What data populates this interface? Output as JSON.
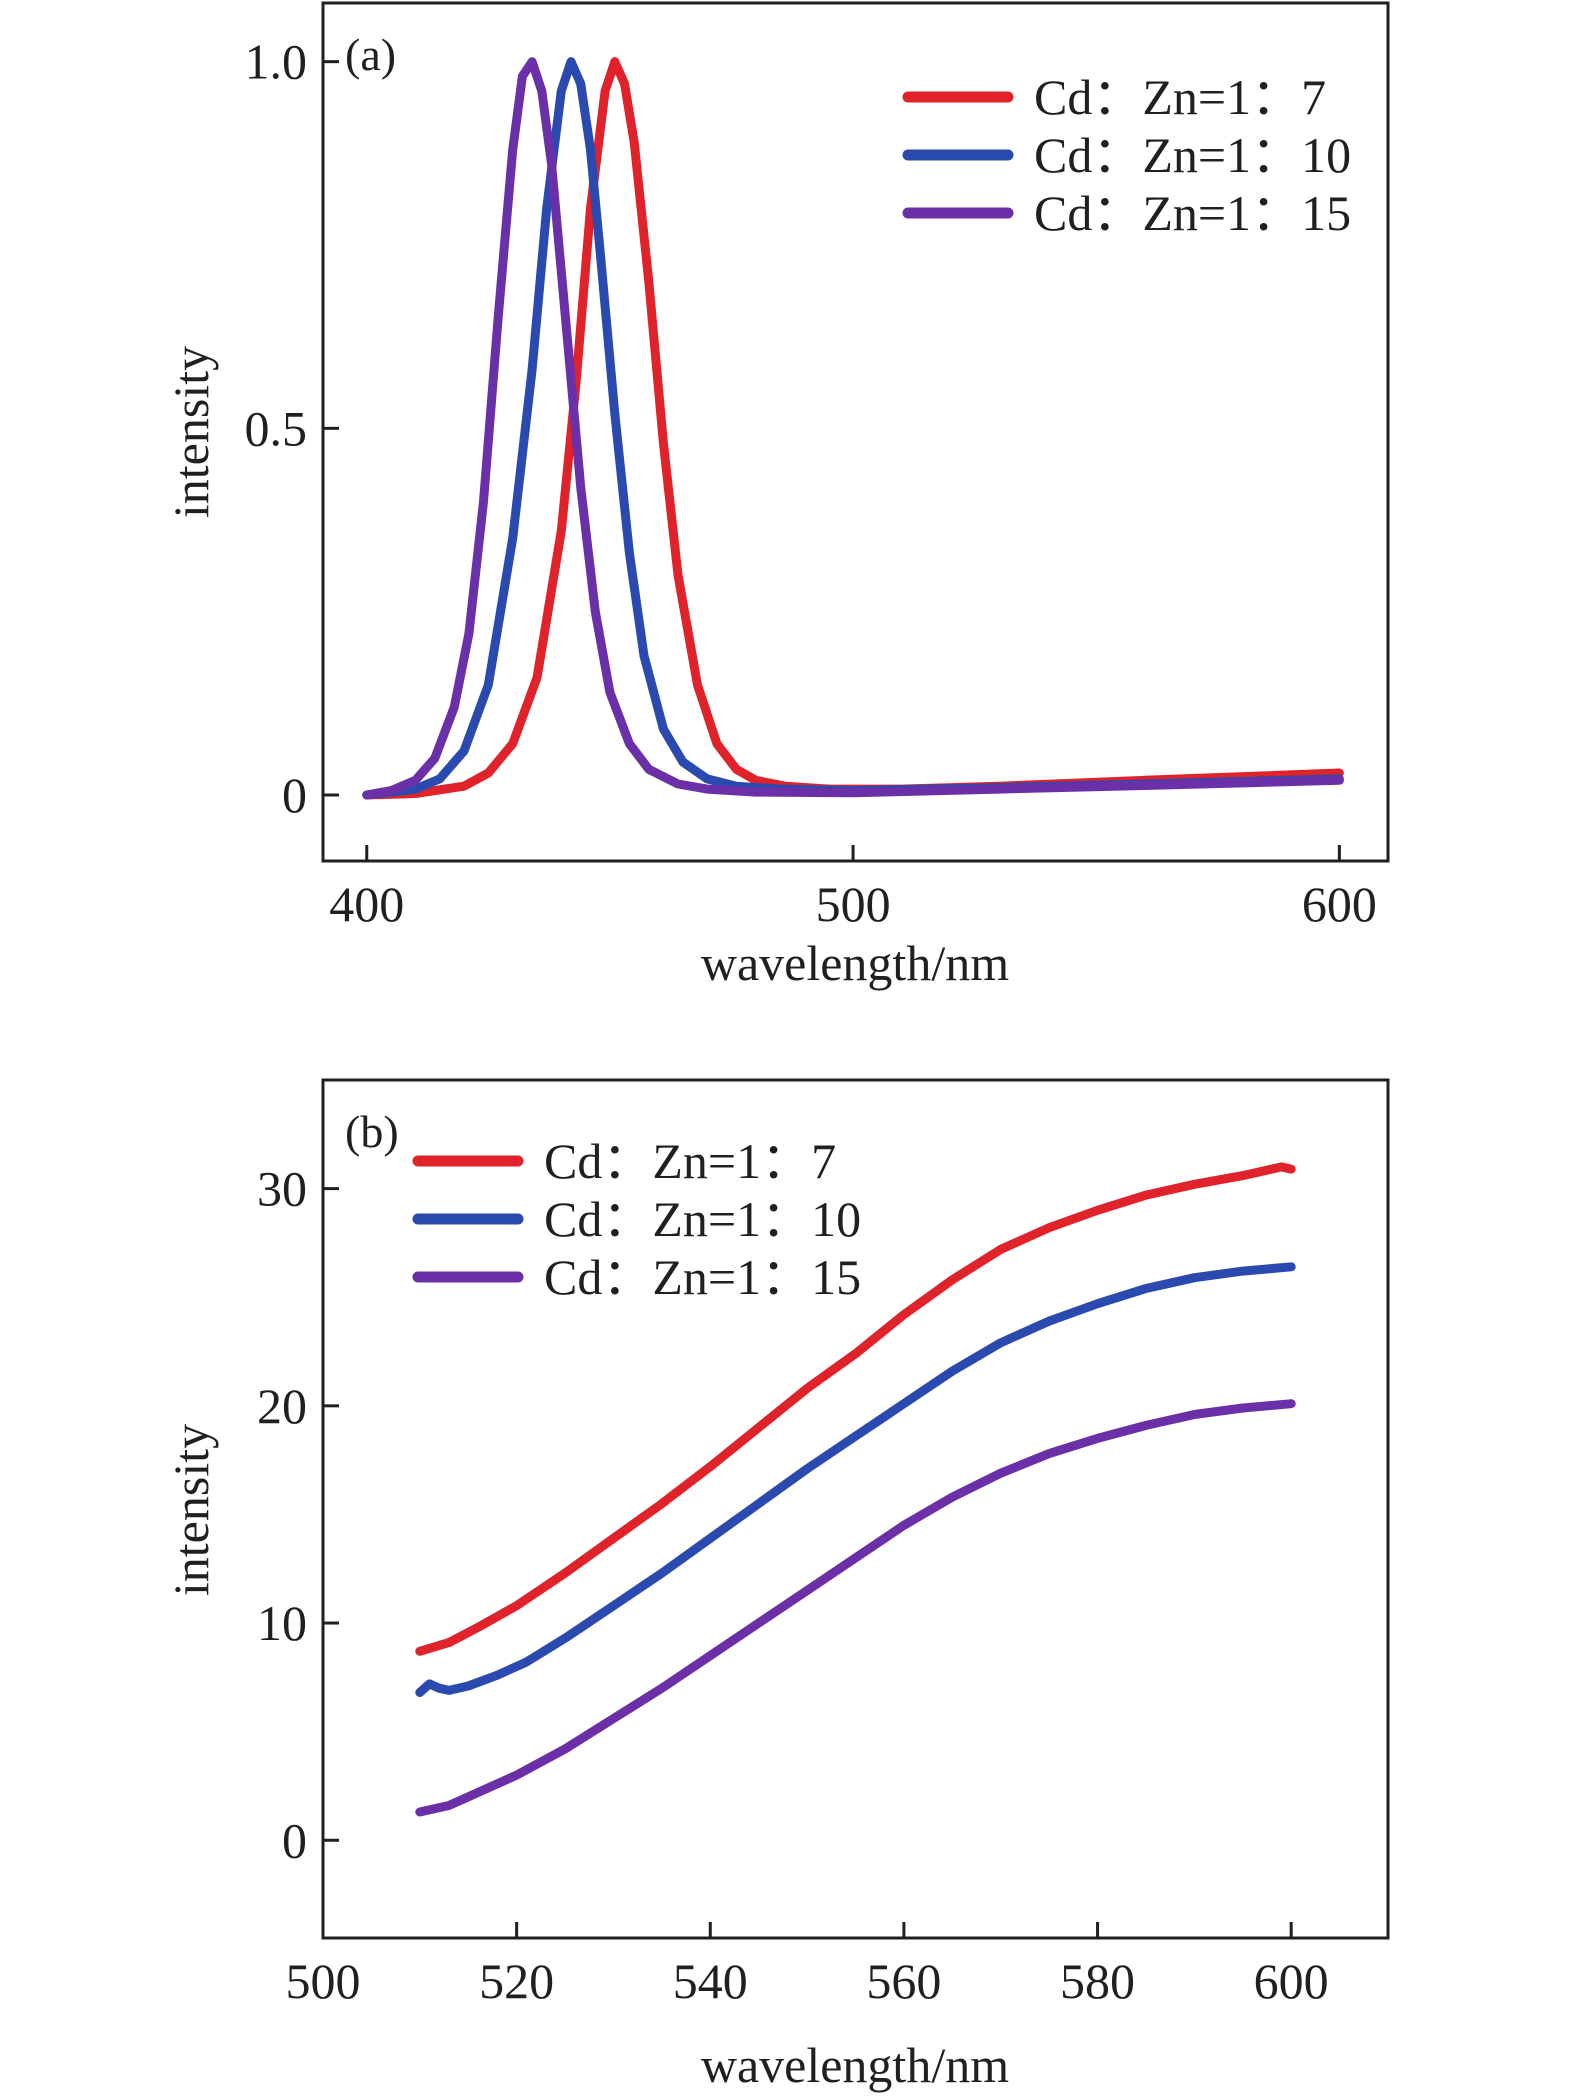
{
  "chart_data": [
    {
      "type": "line",
      "panel_label": "(a)",
      "xlabel": "wavelength/nm",
      "ylabel": "intensity",
      "xlim": [
        391,
        610
      ],
      "ylim": [
        -0.09,
        1.08
      ],
      "xticks": [
        400,
        500,
        600
      ],
      "xtick_labels": [
        "400",
        "500",
        "600"
      ],
      "yticks": [
        0,
        0.5,
        1.0
      ],
      "ytick_labels": [
        "0",
        "0.5",
        "1.0"
      ],
      "grid": false,
      "legend_position": "top-right",
      "series": [
        {
          "name": "Cd：Zn=1：7",
          "color": "#e0222b",
          "x": [
            400,
            410,
            420,
            425,
            430,
            435,
            440,
            443,
            446,
            449,
            451,
            453,
            455,
            458,
            461,
            464,
            468,
            472,
            476,
            480,
            486,
            495,
            510,
            530,
            560,
            600
          ],
          "y": [
            0.0,
            0.002,
            0.012,
            0.03,
            0.07,
            0.16,
            0.36,
            0.56,
            0.8,
            0.96,
            1.0,
            0.97,
            0.89,
            0.7,
            0.48,
            0.3,
            0.15,
            0.07,
            0.035,
            0.02,
            0.012,
            0.008,
            0.008,
            0.012,
            0.02,
            0.03
          ]
        },
        {
          "name": "Cd：Zn=1：10",
          "color": "#2b4ab0",
          "x": [
            400,
            410,
            415,
            420,
            425,
            430,
            434,
            437,
            440,
            442,
            444,
            446,
            448,
            451,
            454,
            457,
            461,
            465,
            470,
            476,
            485,
            500,
            530,
            560,
            600
          ],
          "y": [
            0.0,
            0.008,
            0.022,
            0.06,
            0.15,
            0.35,
            0.58,
            0.8,
            0.96,
            1.0,
            0.97,
            0.88,
            0.74,
            0.52,
            0.33,
            0.19,
            0.09,
            0.045,
            0.022,
            0.012,
            0.008,
            0.006,
            0.01,
            0.015,
            0.022
          ]
        },
        {
          "name": "Cd：Zn=1：15",
          "color": "#6b30a8",
          "x": [
            400,
            405,
            410,
            414,
            418,
            421,
            424,
            427,
            430,
            432,
            434,
            436,
            438,
            441,
            444,
            447,
            450,
            454,
            458,
            464,
            470,
            480,
            500,
            530,
            560,
            600
          ],
          "y": [
            0.0,
            0.006,
            0.02,
            0.05,
            0.12,
            0.22,
            0.4,
            0.65,
            0.88,
            0.98,
            1.0,
            0.96,
            0.86,
            0.64,
            0.42,
            0.25,
            0.14,
            0.07,
            0.035,
            0.015,
            0.008,
            0.004,
            0.003,
            0.008,
            0.013,
            0.02
          ]
        }
      ]
    },
    {
      "type": "line",
      "panel_label": "(b)",
      "xlabel": "wavelength/nm",
      "ylabel": "intensity",
      "xlim": [
        500,
        610
      ],
      "ylim": [
        -4.5,
        35
      ],
      "xticks": [
        500,
        520,
        540,
        560,
        580,
        600
      ],
      "xtick_labels": [
        "500",
        "520",
        "540",
        "560",
        "580",
        "600"
      ],
      "yticks": [
        0,
        10,
        20,
        30
      ],
      "ytick_labels": [
        "0",
        "10",
        "20",
        "30"
      ],
      "grid": false,
      "legend_position": "top-left",
      "series": [
        {
          "name": "Cd：Zn=1：7",
          "color": "#e0222b",
          "x": [
            510,
            513,
            516,
            520,
            525,
            530,
            535,
            540,
            545,
            550,
            555,
            560,
            565,
            570,
            575,
            580,
            585,
            590,
            595,
            599,
            600
          ],
          "y": [
            8.7,
            9.1,
            9.8,
            10.8,
            12.3,
            13.9,
            15.5,
            17.2,
            19.0,
            20.8,
            22.4,
            24.2,
            25.8,
            27.2,
            28.2,
            29.0,
            29.7,
            30.2,
            30.6,
            31.0,
            30.9
          ]
        },
        {
          "name": "Cd：Zn=1：10",
          "color": "#2b4ab0",
          "x": [
            510,
            511,
            512,
            513,
            515,
            518,
            521,
            525,
            530,
            535,
            540,
            545,
            550,
            555,
            560,
            565,
            570,
            575,
            580,
            585,
            590,
            595,
            600
          ],
          "y": [
            6.8,
            7.2,
            7.0,
            6.9,
            7.1,
            7.6,
            8.2,
            9.3,
            10.8,
            12.3,
            13.9,
            15.5,
            17.1,
            18.6,
            20.1,
            21.6,
            22.9,
            23.9,
            24.7,
            25.4,
            25.9,
            26.2,
            26.4
          ]
        },
        {
          "name": "Cd：Zn=1：15",
          "color": "#6b30a8",
          "x": [
            510,
            513,
            516,
            520,
            525,
            530,
            535,
            540,
            545,
            550,
            555,
            560,
            565,
            570,
            575,
            580,
            585,
            590,
            595,
            600
          ],
          "y": [
            1.3,
            1.6,
            2.2,
            3.0,
            4.2,
            5.6,
            7.0,
            8.5,
            10.0,
            11.5,
            13.0,
            14.5,
            15.8,
            16.9,
            17.8,
            18.5,
            19.1,
            19.6,
            19.9,
            20.1
          ]
        }
      ]
    }
  ]
}
